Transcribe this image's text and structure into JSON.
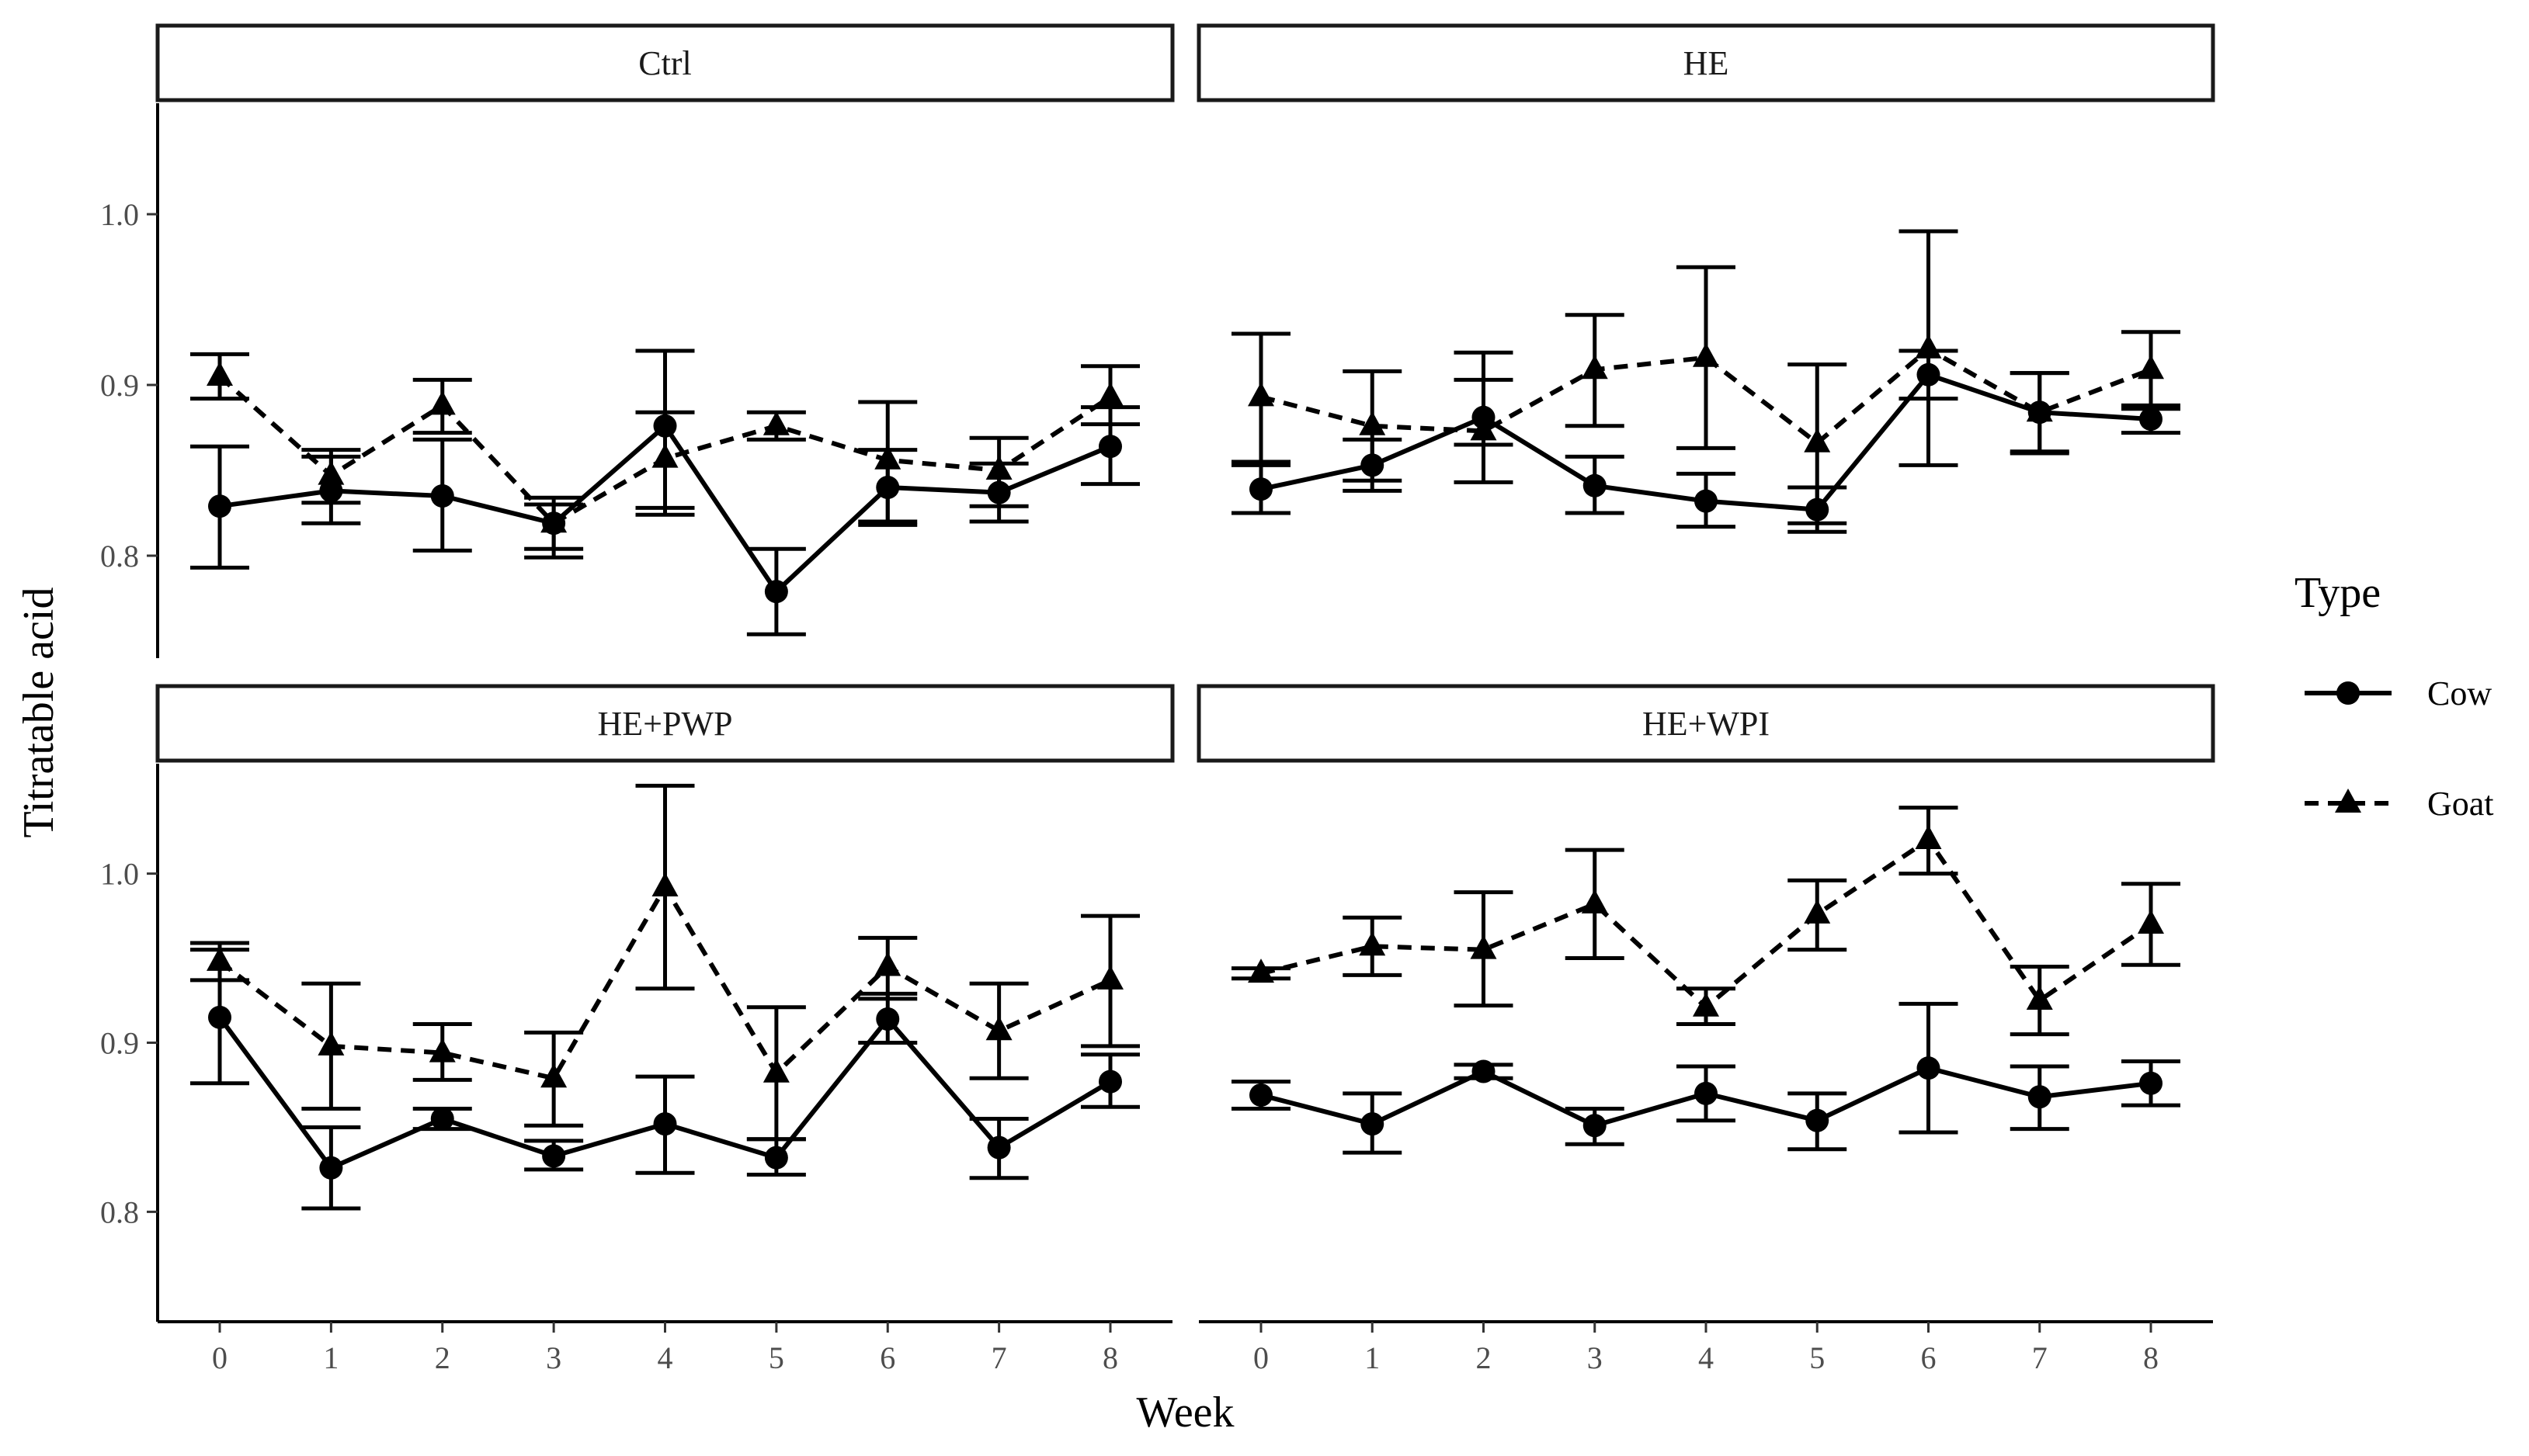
{
  "chart_data": {
    "type": "line",
    "facets": [
      "Ctrl",
      "HE",
      "HE+PWP",
      "HE+WPI"
    ],
    "xlabel": "Week",
    "ylabel": "Titratable acid",
    "x": [
      0,
      1,
      2,
      3,
      4,
      5,
      6,
      7,
      8
    ],
    "x_tick_labels": [
      "0",
      "1",
      "2",
      "3",
      "4",
      "5",
      "6",
      "7",
      "8"
    ],
    "y_ticks": [
      0.8,
      0.9,
      1.0
    ],
    "y_tick_labels": [
      "0.8",
      "0.9",
      "1.0"
    ],
    "ylim_top_row": [
      0.74,
      1.065
    ],
    "ylim_bottom_row": [
      0.735,
      1.065
    ],
    "legend": {
      "title": "Type",
      "entries": [
        {
          "name": "Cow",
          "marker": "circle",
          "line": "solid"
        },
        {
          "name": "Goat",
          "marker": "triangle",
          "line": "dashed"
        }
      ],
      "position": "right"
    },
    "panels": [
      {
        "facet": "Ctrl",
        "series": [
          {
            "name": "Cow",
            "values": [
              0.829,
              0.838,
              0.835,
              0.819,
              0.876,
              0.779,
              0.84,
              0.837,
              0.864
            ],
            "lower": [
              0.793,
              0.819,
              0.803,
              0.804,
              0.828,
              0.754,
              0.818,
              0.82,
              0.842
            ],
            "upper": [
              0.864,
              0.858,
              0.868,
              0.834,
              0.92,
              0.804,
              0.862,
              0.854,
              0.887
            ]
          },
          {
            "name": "Goat",
            "values": [
              0.905,
              0.847,
              0.888,
              0.819,
              0.857,
              0.876,
              0.856,
              0.85,
              0.893
            ],
            "lower": [
              0.892,
              0.831,
              0.872,
              0.799,
              0.824,
              0.868,
              0.82,
              0.829,
              0.877
            ],
            "upper": [
              0.918,
              0.862,
              0.903,
              0.83,
              0.884,
              0.884,
              0.89,
              0.869,
              0.911
            ]
          }
        ]
      },
      {
        "facet": "HE",
        "series": [
          {
            "name": "Cow",
            "values": [
              0.839,
              0.853,
              0.881,
              0.841,
              0.832,
              0.827,
              0.906,
              0.884,
              0.88
            ],
            "lower": [
              0.825,
              0.838,
              0.865,
              0.825,
              0.817,
              0.814,
              0.892,
              0.86,
              0.872
            ],
            "upper": [
              0.855,
              0.868,
              0.903,
              0.858,
              0.848,
              0.84,
              0.92,
              0.907,
              0.888
            ]
          },
          {
            "name": "Goat",
            "values": [
              0.893,
              0.876,
              0.873,
              0.909,
              0.916,
              0.866,
              0.921,
              0.884,
              0.909
            ],
            "lower": [
              0.853,
              0.844,
              0.843,
              0.876,
              0.863,
              0.819,
              0.853,
              0.861,
              0.886
            ],
            "upper": [
              0.93,
              0.908,
              0.919,
              0.941,
              0.969,
              0.912,
              0.99,
              0.907,
              0.931
            ]
          }
        ]
      },
      {
        "facet": "HE+PWP",
        "series": [
          {
            "name": "Cow",
            "values": [
              0.915,
              0.826,
              0.855,
              0.833,
              0.852,
              0.832,
              0.914,
              0.838,
              0.877
            ],
            "lower": [
              0.876,
              0.802,
              0.849,
              0.825,
              0.823,
              0.822,
              0.9,
              0.82,
              0.862
            ],
            "upper": [
              0.955,
              0.85,
              0.861,
              0.842,
              0.88,
              0.843,
              0.929,
              0.855,
              0.893
            ]
          },
          {
            "name": "Goat",
            "values": [
              0.948,
              0.898,
              0.894,
              0.879,
              0.992,
              0.882,
              0.945,
              0.907,
              0.937
            ],
            "lower": [
              0.937,
              0.861,
              0.878,
              0.851,
              0.932,
              0.843,
              0.926,
              0.879,
              0.898
            ],
            "upper": [
              0.959,
              0.935,
              0.911,
              0.906,
              1.052,
              0.921,
              0.962,
              0.935,
              0.975
            ]
          }
        ]
      },
      {
        "facet": "HE+WPI",
        "series": [
          {
            "name": "Cow",
            "values": [
              0.869,
              0.852,
              0.883,
              0.851,
              0.87,
              0.854,
              0.885,
              0.868,
              0.876
            ],
            "lower": [
              0.861,
              0.835,
              0.879,
              0.84,
              0.854,
              0.837,
              0.847,
              0.849,
              0.863
            ],
            "upper": [
              0.877,
              0.87,
              0.887,
              0.861,
              0.886,
              0.87,
              0.923,
              0.886,
              0.889
            ]
          },
          {
            "name": "Goat",
            "values": [
              0.941,
              0.957,
              0.955,
              0.982,
              0.921,
              0.976,
              1.02,
              0.925,
              0.97
            ],
            "lower": [
              0.938,
              0.94,
              0.922,
              0.95,
              0.911,
              0.955,
              1.0,
              0.905,
              0.946
            ],
            "upper": [
              0.944,
              0.974,
              0.989,
              1.014,
              0.932,
              0.996,
              1.039,
              0.945,
              0.994
            ]
          }
        ]
      }
    ]
  }
}
